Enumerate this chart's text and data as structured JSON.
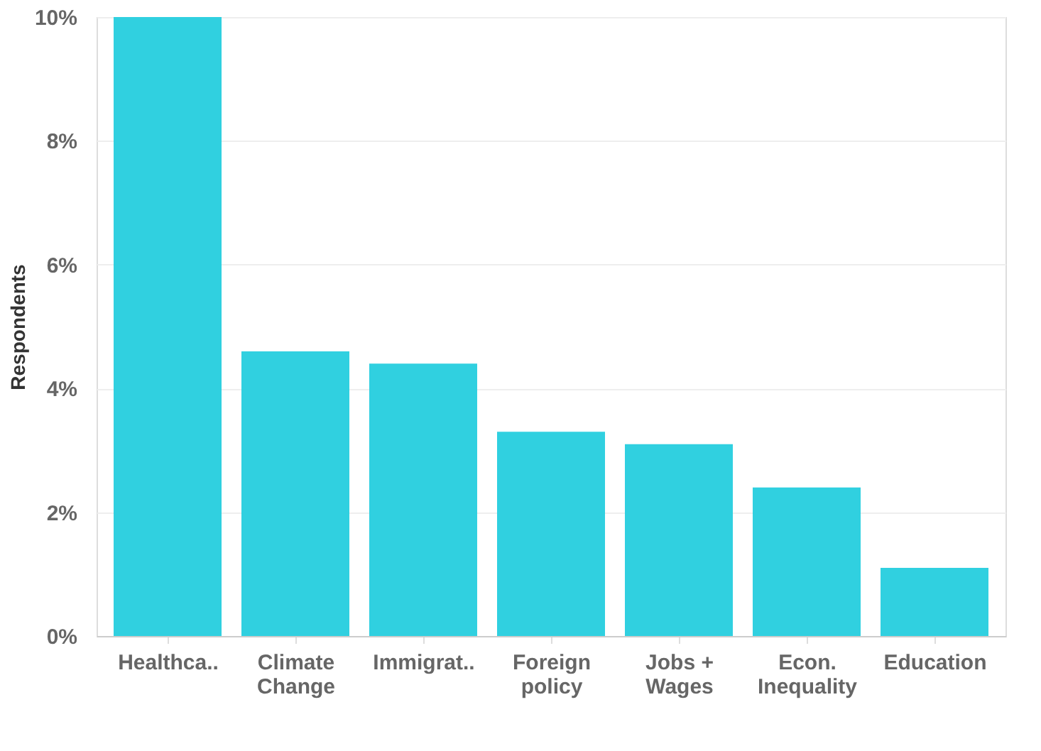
{
  "chart_data": {
    "type": "bar",
    "ylabel": "Respondents",
    "categories": [
      "Healthca..",
      "Climate\nChange",
      "Immigrat..",
      "Foreign\npolicy",
      "Jobs +\nWages",
      "Econ.\nInequality",
      "Education"
    ],
    "values": [
      10,
      4.6,
      4.4,
      3.3,
      3.1,
      2.4,
      1.1
    ],
    "color": "#30d0e0",
    "ylim": [
      0,
      10
    ],
    "yticks": [
      {
        "value": 0,
        "label": "0%"
      },
      {
        "value": 2,
        "label": "2%"
      },
      {
        "value": 4,
        "label": "4%"
      },
      {
        "value": 6,
        "label": "6%"
      },
      {
        "value": 8,
        "label": "8%"
      },
      {
        "value": 10,
        "label": "10%"
      }
    ],
    "grid": "y"
  }
}
